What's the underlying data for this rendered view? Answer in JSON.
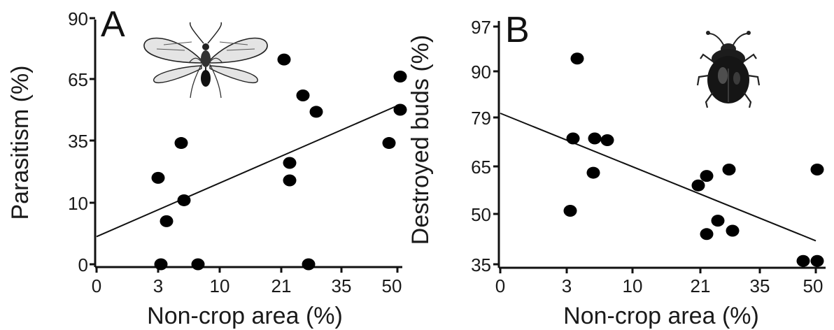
{
  "chart_data": [
    {
      "type": "scatter",
      "panel_label": "A",
      "xlabel": "Non-crop area (%)",
      "ylabel": "Parasitism (%)",
      "x_ticks": [
        "0",
        "3",
        "10",
        "21",
        "35",
        "50"
      ],
      "y_ticks": [
        "0",
        "10",
        "35",
        "65",
        "90"
      ],
      "icon": "wasp-icon",
      "points": [
        {
          "x": "3",
          "y": 20
        },
        {
          "x": "3",
          "y": 0
        },
        {
          "x": "3",
          "y": 7
        },
        {
          "x": "3-10",
          "y": 34
        },
        {
          "x": "3-10",
          "y": 11
        },
        {
          "x": "10",
          "y": 0
        },
        {
          "x": "21",
          "y": 73
        },
        {
          "x": "21",
          "y": 26
        },
        {
          "x": "21",
          "y": 19
        },
        {
          "x": "21-35",
          "y": 57
        },
        {
          "x": "21-35",
          "y": 0
        },
        {
          "x": "35",
          "y": 49
        },
        {
          "x": "35-50",
          "y": 34
        },
        {
          "x": "50",
          "y": 66
        },
        {
          "x": "50",
          "y": 50
        }
      ],
      "trendline": {
        "from": {
          "x": "0",
          "y": 4.5
        },
        "to": {
          "x": "50",
          "y": 52
        }
      }
    },
    {
      "type": "scatter",
      "panel_label": "B",
      "xlabel": "Non-crop area (%)",
      "ylabel": "Destroyed buds (%)",
      "x_ticks": [
        "0",
        "3",
        "10",
        "21",
        "35",
        "50"
      ],
      "y_ticks": [
        "35",
        "50",
        "65",
        "79",
        "90",
        "97"
      ],
      "icon": "beetle-icon",
      "points": [
        {
          "x": "3",
          "y": 92
        },
        {
          "x": "3",
          "y": 73
        },
        {
          "x": "3",
          "y": 51
        },
        {
          "x": "3-10",
          "y": 73
        },
        {
          "x": "3-10",
          "y": 63
        },
        {
          "x": "3-10",
          "y": 72.5
        },
        {
          "x": "21",
          "y": 59
        },
        {
          "x": "21",
          "y": 62
        },
        {
          "x": "21",
          "y": 44
        },
        {
          "x": "21-35",
          "y": 48
        },
        {
          "x": "21-35",
          "y": 64
        },
        {
          "x": "35",
          "y": 45
        },
        {
          "x": "50",
          "y": 36
        },
        {
          "x": "50",
          "y": 36
        },
        {
          "x": "50",
          "y": 64
        }
      ],
      "trendline": {
        "from": {
          "x": "0",
          "y": 80
        },
        "to": {
          "x": "50",
          "y": 42
        }
      }
    }
  ]
}
